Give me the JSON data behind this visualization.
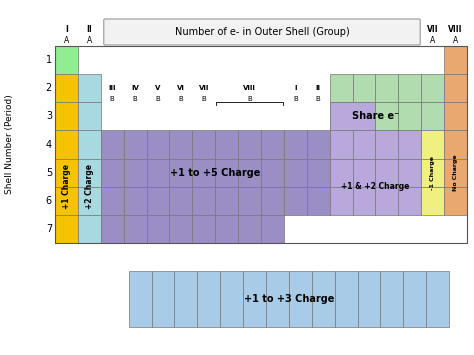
{
  "colors": {
    "green_light": "#90EE90",
    "yellow": "#F5C400",
    "cyan_light": "#A8D8E0",
    "purple": "#9B8EC4",
    "lavender": "#B8A8DC",
    "green_pale": "#B0DCB0",
    "yellow_light": "#F0F080",
    "orange_light": "#E8A870",
    "blue_light": "#A8CCE8",
    "white": "#FFFFFF",
    "border": "#777777",
    "box_bg": "#E8E8E8"
  },
  "main_label": "Number of e- in Outer Shell (Group)",
  "ylabel": "Shell Number (Period)",
  "bottom_label": "+1 to +3 Charge",
  "charge_ia": "+1 Charge",
  "charge_iia": "+2 Charge",
  "charge_d": "+1 to +5 Charge",
  "charge_share": "Share e⁻",
  "charge_right_purple": "+1 & +2 Charge",
  "charge_viia": "-1 Charge",
  "charge_viiia": "No Charge"
}
